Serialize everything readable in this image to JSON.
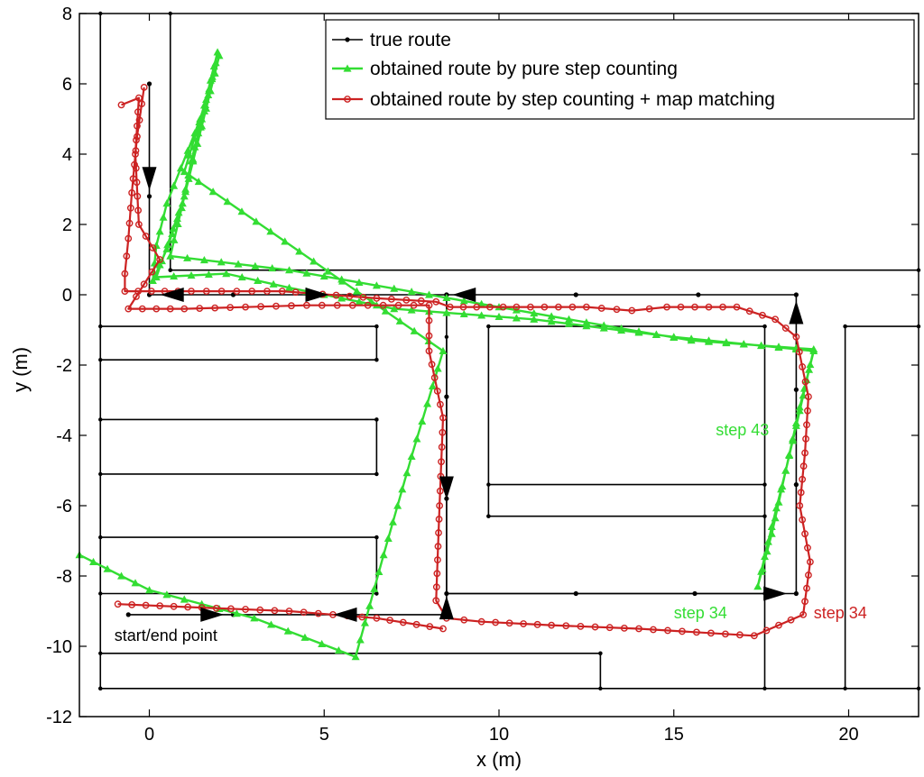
{
  "chart_data": {
    "type": "line",
    "xlabel": "x (m)",
    "ylabel": "y (m)",
    "xlim": [
      -2,
      22
    ],
    "ylim": [
      -12,
      8
    ],
    "xticks": [
      "0",
      "5",
      "10",
      "15",
      "20"
    ],
    "xtick_values": [
      0,
      5,
      10,
      15,
      20
    ],
    "yticks": [
      "8",
      "6",
      "4",
      "2",
      "0",
      "-2",
      "-4",
      "-6",
      "-8",
      "-10",
      "-12"
    ],
    "ytick_values": [
      8,
      6,
      4,
      2,
      0,
      -2,
      -4,
      -6,
      -8,
      -10,
      -12
    ],
    "legend_position": "top-right",
    "colors": {
      "true": "#000000",
      "pure": "#33dd33",
      "matched": "#cc2222",
      "wall": "#000000"
    },
    "walls": [
      [
        [
          -1.4,
          8
        ],
        [
          -1.4,
          -11.2
        ]
      ],
      [
        [
          0.6,
          8
        ],
        [
          0.6,
          0.7
        ]
      ],
      [
        [
          0.6,
          0.7
        ],
        [
          22,
          0.7
        ]
      ],
      [
        [
          -1.4,
          -0.9
        ],
        [
          6.5,
          -0.9
        ]
      ],
      [
        [
          6.5,
          -0.9
        ],
        [
          6.5,
          -1.85
        ]
      ],
      [
        [
          -1.4,
          -1.85
        ],
        [
          6.5,
          -1.85
        ]
      ],
      [
        [
          -1.4,
          -3.55
        ],
        [
          6.5,
          -3.55
        ]
      ],
      [
        [
          6.5,
          -3.55
        ],
        [
          6.5,
          -5.1
        ]
      ],
      [
        [
          -1.4,
          -5.1
        ],
        [
          6.5,
          -5.1
        ]
      ],
      [
        [
          -1.4,
          -6.9
        ],
        [
          6.5,
          -6.9
        ]
      ],
      [
        [
          6.5,
          -6.9
        ],
        [
          6.5,
          -8.5
        ]
      ],
      [
        [
          -1.4,
          -8.5
        ],
        [
          6.5,
          -8.5
        ]
      ],
      [
        [
          8.5,
          -1.2
        ],
        [
          8.5,
          -8.5
        ]
      ],
      [
        [
          8.5,
          -8.5
        ],
        [
          17.6,
          -8.5
        ]
      ],
      [
        [
          9.7,
          -0.9
        ],
        [
          17.6,
          -0.9
        ]
      ],
      [
        [
          9.7,
          -0.9
        ],
        [
          9.7,
          -6.3
        ]
      ],
      [
        [
          9.7,
          -5.4
        ],
        [
          17.6,
          -5.4
        ]
      ],
      [
        [
          9.7,
          -6.3
        ],
        [
          17.6,
          -6.3
        ]
      ],
      [
        [
          17.6,
          -0.9
        ],
        [
          17.6,
          -11.2
        ]
      ],
      [
        [
          -1.4,
          -10.2
        ],
        [
          12.9,
          -10.2
        ]
      ],
      [
        [
          12.9,
          -10.2
        ],
        [
          12.9,
          -11.2
        ]
      ],
      [
        [
          -1.4,
          -11.2
        ],
        [
          22,
          -11.2
        ]
      ],
      [
        [
          19.9,
          -0.9
        ],
        [
          19.9,
          -11.2
        ]
      ],
      [
        [
          19.9,
          -0.9
        ],
        [
          22,
          -0.9
        ]
      ]
    ],
    "series": [
      {
        "name": "true route",
        "points": [
          [
            0,
            6.0
          ],
          [
            0,
            2.8
          ],
          [
            0,
            0.0
          ],
          [
            2.4,
            0.0
          ],
          [
            4.8,
            0.0
          ],
          [
            8.5,
            0.0
          ],
          [
            12.2,
            0.0
          ],
          [
            15.7,
            0.0
          ],
          [
            18.5,
            0.0
          ],
          [
            18.5,
            -2.7
          ],
          [
            18.5,
            -5.4
          ],
          [
            18.5,
            -8.5
          ],
          [
            15.6,
            -8.5
          ],
          [
            12.2,
            -8.5
          ],
          [
            8.5,
            -8.5
          ],
          [
            8.5,
            -5.8
          ],
          [
            8.5,
            -2.9
          ],
          [
            8.5,
            0.0
          ],
          [
            8.5,
            -9.1
          ],
          [
            5.5,
            -9.1
          ],
          [
            2.4,
            -9.1
          ],
          [
            -0.6,
            -9.1
          ]
        ]
      },
      {
        "name": "obtained route by pure step counting",
        "points": [
          [
            1.95,
            6.9
          ],
          [
            1.75,
            6.1
          ],
          [
            1.5,
            5.0
          ],
          [
            1.2,
            3.8
          ],
          [
            0.95,
            2.6
          ],
          [
            0.5,
            1.3
          ],
          [
            0.1,
            0.4
          ],
          [
            0.2,
            1.4
          ],
          [
            0.5,
            2.6
          ],
          [
            0.9,
            3.6
          ],
          [
            1.3,
            4.6
          ],
          [
            1.6,
            5.4
          ],
          [
            1.9,
            6.6
          ],
          [
            0.6,
            1.1
          ],
          [
            4.0,
            0.7
          ],
          [
            8.0,
            0.0
          ],
          [
            12.0,
            -0.7
          ],
          [
            15.5,
            -1.3
          ],
          [
            19.0,
            -1.55
          ],
          [
            18.6,
            -3.3
          ],
          [
            18.2,
            -5.0
          ],
          [
            17.8,
            -6.6
          ],
          [
            17.4,
            -8.3
          ],
          [
            17.8,
            -6.8
          ],
          [
            18.2,
            -5.0
          ],
          [
            18.6,
            -3.2
          ],
          [
            19.0,
            -1.6
          ],
          [
            15.0,
            -1.2
          ],
          [
            11.0,
            -0.7
          ],
          [
            7.0,
            -0.4
          ],
          [
            4.0,
            0.2
          ],
          [
            2.2,
            0.6
          ],
          [
            0.2,
            0.5
          ],
          [
            1.0,
            2.8
          ],
          [
            2.0,
            6.8
          ],
          [
            1.0,
            3.5
          ],
          [
            8.4,
            -1.6
          ],
          [
            7.5,
            -4.6
          ],
          [
            6.7,
            -7.4
          ],
          [
            5.9,
            -10.3
          ],
          [
            3.0,
            -9.2
          ],
          [
            0.0,
            -8.4
          ],
          [
            -2.0,
            -7.4
          ]
        ]
      },
      {
        "name": "obtained route by step counting + map matching",
        "points": [
          [
            -0.15,
            5.9
          ],
          [
            -0.35,
            4.5
          ],
          [
            -0.5,
            2.9
          ],
          [
            -0.6,
            1.6
          ],
          [
            -0.7,
            0.6
          ],
          [
            -0.7,
            0.1
          ],
          [
            1.2,
            0.1
          ],
          [
            3.8,
            0.1
          ],
          [
            6.5,
            -0.1
          ],
          [
            8.2,
            -0.2
          ],
          [
            8.6,
            -0.35
          ],
          [
            10.5,
            -0.35
          ],
          [
            12.5,
            -0.35
          ],
          [
            13.8,
            -0.45
          ],
          [
            14.8,
            -0.35
          ],
          [
            16.8,
            -0.35
          ],
          [
            17.9,
            -0.7
          ],
          [
            18.5,
            -1.2
          ],
          [
            18.85,
            -2.9
          ],
          [
            18.75,
            -4.5
          ],
          [
            18.6,
            -6.0
          ],
          [
            18.9,
            -7.6
          ],
          [
            18.7,
            -9.1
          ],
          [
            17.3,
            -9.7
          ],
          [
            14.0,
            -9.5
          ],
          [
            11.5,
            -9.4
          ],
          [
            9.5,
            -9.3
          ],
          [
            8.5,
            -9.2
          ],
          [
            8.2,
            -8.7
          ],
          [
            8.3,
            -6.0
          ],
          [
            8.4,
            -3.5
          ],
          [
            8.0,
            -1.6
          ],
          [
            8.0,
            -0.3
          ],
          [
            4.5,
            -0.3
          ],
          [
            1.0,
            -0.4
          ],
          [
            -0.6,
            -0.4
          ],
          [
            0.3,
            1.0
          ],
          [
            -0.3,
            2.0
          ],
          [
            -0.4,
            4.0
          ],
          [
            -0.3,
            5.6
          ],
          [
            -0.8,
            5.4
          ]
        ]
      }
    ],
    "series_matched_tail": [
      [
        8.4,
        -9.5
      ],
      [
        6.5,
        -9.2
      ],
      [
        4.0,
        -9.0
      ],
      [
        1.5,
        -8.9
      ],
      [
        -0.9,
        -8.8
      ]
    ],
    "direction_arrows": [
      {
        "at": [
          0,
          3.3
        ],
        "dir": "down"
      },
      {
        "at": [
          0.65,
          0.0
        ],
        "dir": "left"
      },
      {
        "at": [
          4.8,
          0.0
        ],
        "dir": "right"
      },
      {
        "at": [
          9.0,
          0.0
        ],
        "dir": "left"
      },
      {
        "at": [
          18.5,
          -0.5
        ],
        "dir": "up"
      },
      {
        "at": [
          17.9,
          -8.5
        ],
        "dir": "right"
      },
      {
        "at": [
          8.5,
          -5.5
        ],
        "dir": "down"
      },
      {
        "at": [
          8.5,
          -8.9
        ],
        "dir": "up"
      },
      {
        "at": [
          5.6,
          -9.1
        ],
        "dir": "left"
      },
      {
        "at": [
          1.8,
          -9.1
        ],
        "dir": "right"
      }
    ],
    "annotations": [
      {
        "text": "step 43",
        "at": [
          16.2,
          -4.0
        ],
        "color": "pure"
      },
      {
        "text": "step 34",
        "at": [
          15.0,
          -9.2
        ],
        "color": "pure"
      },
      {
        "text": "step 34",
        "at": [
          19.0,
          -9.2
        ],
        "color": "matched"
      },
      {
        "text": "start/end point",
        "at": [
          -1.0,
          -9.85
        ],
        "color": "true"
      }
    ]
  }
}
